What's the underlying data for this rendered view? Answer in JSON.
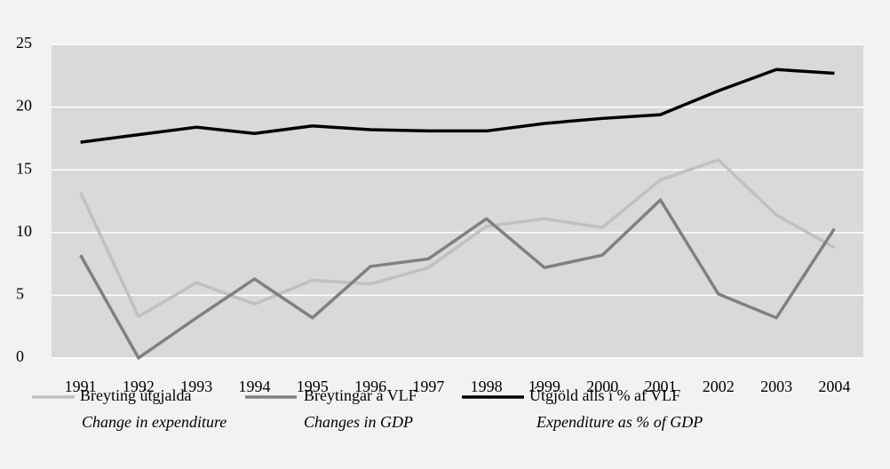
{
  "chart_data": {
    "type": "line",
    "categories": [
      "1991",
      "1992",
      "1993",
      "1994",
      "1995",
      "1996",
      "1997",
      "1998",
      "1999",
      "2000",
      "2001",
      "2002",
      "2003",
      "2004"
    ],
    "series": [
      {
        "name": "Breyting útgjalda",
        "name_en": "Change in expenditure",
        "color": "#c0c0c0",
        "values": [
          13.2,
          3.3,
          6.0,
          4.3,
          6.2,
          5.9,
          7.2,
          10.5,
          11.1,
          10.4,
          14.2,
          15.8,
          11.4,
          8.8
        ]
      },
      {
        "name": "Breytingar á VLF",
        "name_en": "Changes in GDP",
        "color": "#808080",
        "values": [
          8.2,
          0.0,
          3.2,
          6.3,
          3.2,
          7.3,
          7.9,
          11.1,
          7.2,
          8.2,
          12.6,
          5.1,
          3.2,
          10.3
        ]
      },
      {
        "name": "Útgjöld alls  í % af VLF",
        "name_en": "Expenditure as % of GDP",
        "color": "#000000",
        "values": [
          17.2,
          17.8,
          18.4,
          17.9,
          18.5,
          18.2,
          18.1,
          18.1,
          18.7,
          19.1,
          19.4,
          21.3,
          23.0,
          22.7
        ]
      }
    ],
    "ylim": [
      0,
      25
    ],
    "yticks": [
      0,
      5,
      10,
      15,
      20,
      25
    ],
    "grid": true
  }
}
